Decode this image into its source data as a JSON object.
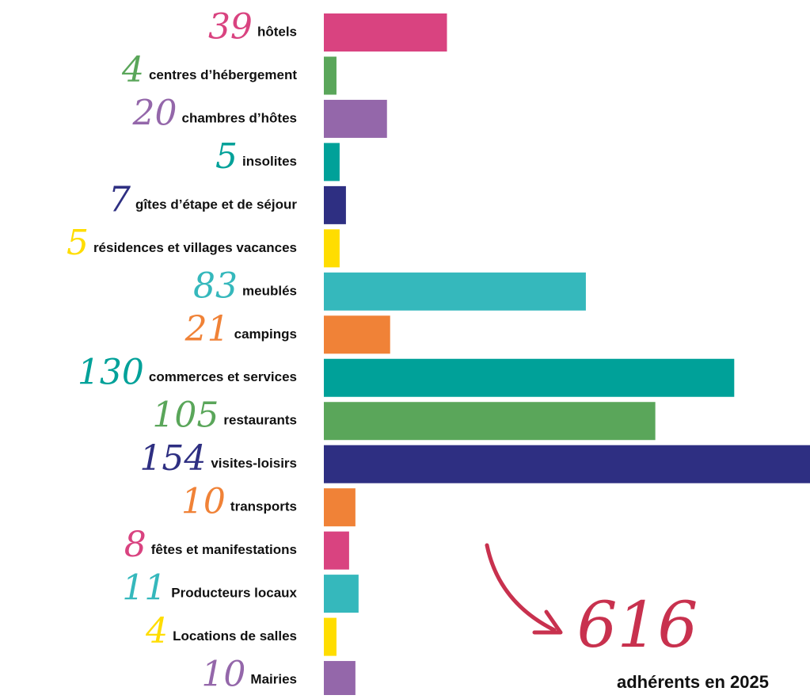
{
  "chart_data": {
    "type": "bar",
    "orientation": "horizontal",
    "categories": [
      "hôtels",
      "centres d’hébergement",
      "chambres d’hôtes",
      "insolites",
      "gîtes d’étape et de séjour",
      "résidences et villages vacances",
      "meublés",
      "campings",
      "commerces et services",
      "restaurants",
      "visites-loisirs",
      "transports",
      "fêtes et manifestations",
      "Producteurs locaux",
      "Locations de salles",
      "Mairies"
    ],
    "values": [
      39,
      4,
      20,
      5,
      7,
      5,
      83,
      21,
      130,
      105,
      154,
      10,
      8,
      11,
      4,
      10
    ],
    "colors": [
      "#d94380",
      "#5aa65a",
      "#9467aa",
      "#00a199",
      "#2e2f82",
      "#ffdd00",
      "#35b8bc",
      "#f08237",
      "#00a199",
      "#5aa65a",
      "#2e2f82",
      "#f08237",
      "#d94380",
      "#35b8bc",
      "#ffdd00",
      "#9467aa"
    ],
    "total": 616,
    "total_label": "adhérents en 2025",
    "total_color": "#c8314e"
  }
}
